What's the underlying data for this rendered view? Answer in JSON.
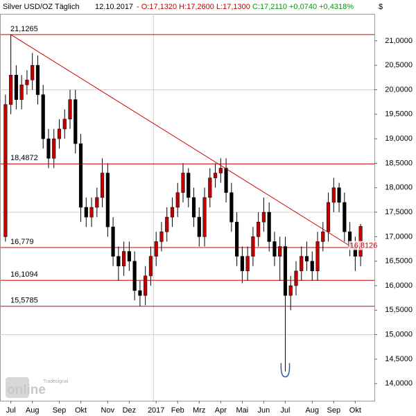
{
  "chart_data": {
    "type": "candlestick",
    "header": {
      "name": "Silver USD/OZ Täglich",
      "date": "12.10.2017",
      "ohlc": "- O:17,1320 H:17,2600 L:17,1300",
      "change": "C:17,2110 +0,0740 +0,4318%"
    },
    "unit": "$",
    "watermark": {
      "brand": "Tradesignal",
      "name": "online"
    },
    "categories": [
      null,
      "Jul",
      null,
      null,
      null,
      "Aug",
      null,
      null,
      null,
      null,
      "Sep",
      null,
      null,
      null,
      "Okt",
      null,
      null,
      null,
      null,
      "Nov",
      null,
      null,
      null,
      "Dez",
      null,
      null,
      null,
      null,
      "2017",
      null,
      null,
      null,
      "Feb",
      null,
      null,
      null,
      "Mrz",
      null,
      null,
      null,
      "Apr",
      null,
      null,
      null,
      "Mai",
      null,
      null,
      null,
      "Jun",
      null,
      null,
      null,
      "Jul",
      null,
      null,
      null,
      null,
      "Aug",
      null,
      null,
      null,
      "Sep",
      null,
      null,
      null,
      "Okt",
      null
    ],
    "open": [
      17.0,
      19.7,
      20.3,
      19.8,
      20.1,
      20.2,
      20.5,
      19.9,
      19.0,
      18.6,
      19.0,
      19.2,
      19.4,
      19.8,
      18.9,
      17.6,
      17.4,
      17.6,
      17.8,
      18.3,
      17.2,
      16.6,
      16.4,
      16.7,
      16.5,
      15.9,
      15.8,
      16.2,
      16.6,
      16.9,
      17.1,
      17.4,
      17.6,
      17.9,
      18.3,
      17.8,
      17.4,
      17.0,
      17.8,
      18.2,
      18.3,
      18.4,
      17.9,
      17.3,
      16.6,
      16.3,
      16.6,
      17.0,
      17.3,
      17.5,
      16.9,
      16.6,
      16.8,
      15.8,
      16.0,
      16.3,
      16.6,
      16.5,
      16.3,
      16.9,
      17.1,
      17.7,
      18.0,
      17.7,
      17.1,
      16.8,
      16.6
    ],
    "high": [
      19.9,
      21.1265,
      20.5,
      20.3,
      20.4,
      20.75,
      20.7,
      20.1,
      19.2,
      19.2,
      19.4,
      19.6,
      20.0,
      20.0,
      19.1,
      17.8,
      17.8,
      18.0,
      18.6,
      18.5,
      17.4,
      16.8,
      16.9,
      16.9,
      16.7,
      16.1,
      16.4,
      16.8,
      17.1,
      17.3,
      17.6,
      17.8,
      18.1,
      18.5,
      18.4,
      18.0,
      17.6,
      18.0,
      18.4,
      18.5,
      18.6,
      18.6,
      18.1,
      17.5,
      16.8,
      16.8,
      17.2,
      17.5,
      17.8,
      17.7,
      17.1,
      17.0,
      17.0,
      16.2,
      16.5,
      16.8,
      16.9,
      16.7,
      17.1,
      17.3,
      17.9,
      18.2,
      18.1,
      17.9,
      17.3,
      17.0,
      17.26
    ],
    "low": [
      16.9,
      19.5,
      19.6,
      19.6,
      19.9,
      20.0,
      19.7,
      18.8,
      18.4,
      18.4,
      18.8,
      19.0,
      19.2,
      18.7,
      17.3,
      17.2,
      17.2,
      17.4,
      17.6,
      17.0,
      16.4,
      16.1,
      16.2,
      16.3,
      15.7,
      15.5785,
      15.6,
      16.0,
      16.4,
      16.7,
      16.9,
      17.2,
      17.4,
      17.7,
      17.6,
      17.2,
      16.8,
      16.8,
      17.6,
      18.0,
      18.1,
      17.7,
      17.1,
      16.4,
      16.05,
      16.1,
      16.4,
      16.8,
      17.1,
      16.7,
      16.4,
      16.1,
      14.25,
      15.5,
      15.8,
      16.1,
      16.3,
      16.1,
      16.1,
      16.7,
      16.9,
      17.5,
      17.5,
      16.9,
      16.6,
      16.3,
      16.4
    ],
    "close": [
      19.7,
      20.3,
      19.8,
      20.1,
      20.2,
      20.5,
      19.9,
      19.0,
      18.6,
      19.0,
      19.2,
      19.4,
      19.8,
      18.9,
      17.6,
      17.4,
      17.6,
      17.8,
      18.3,
      17.2,
      16.6,
      16.4,
      16.7,
      16.5,
      15.9,
      15.8,
      16.2,
      16.6,
      16.9,
      17.1,
      17.4,
      17.6,
      17.9,
      18.3,
      17.8,
      17.4,
      17.0,
      17.8,
      18.2,
      18.3,
      18.4,
      17.9,
      17.3,
      16.6,
      16.3,
      16.6,
      17.0,
      17.3,
      17.5,
      16.9,
      16.6,
      16.8,
      15.8,
      16.0,
      16.3,
      16.6,
      16.5,
      16.3,
      16.9,
      17.1,
      17.7,
      18.0,
      17.7,
      17.1,
      16.8,
      16.6,
      17.211
    ],
    "up_color": "#c00000",
    "down_color": "#000000",
    "wick_color": "#000000",
    "levels": [
      {
        "value": 21.1265,
        "label": "21,1265"
      },
      {
        "value": 18.4872,
        "label": "18,4872"
      },
      {
        "value": 16.779,
        "label": "16,779"
      },
      {
        "value": 16.1094,
        "label": "16,1094"
      },
      {
        "value": 15.5785,
        "label": "15,5785"
      }
    ],
    "level_color": "#cc0000",
    "trendline": [
      {
        "index": 1,
        "value": 21.1265
      },
      {
        "index": 64,
        "value": 16.8126,
        "label": "16,8126"
      }
    ],
    "ylim": [
      13.65,
      21.55
    ],
    "yticks": [
      {
        "value": 14,
        "label": "14,0000"
      },
      {
        "value": 14.5,
        "label": "14,5000"
      },
      {
        "value": 15,
        "label": "15,0000"
      },
      {
        "value": 15.5,
        "label": "15,5000"
      },
      {
        "value": 16,
        "label": "16,0000"
      },
      {
        "value": 16.5,
        "label": "16,5000"
      },
      {
        "value": 17,
        "label": "17,0000"
      },
      {
        "value": 17.5,
        "label": "17,5000"
      },
      {
        "value": 18,
        "label": "18,0000"
      },
      {
        "value": 18.5,
        "label": "18,5000"
      },
      {
        "value": 19,
        "label": "19,0000"
      },
      {
        "value": 19.5,
        "label": "19,5000"
      },
      {
        "value": 20,
        "label": "20,0000"
      },
      {
        "value": 20.5,
        "label": "20,5000"
      },
      {
        "value": 21,
        "label": "21,0000"
      }
    ],
    "grid": true
  }
}
